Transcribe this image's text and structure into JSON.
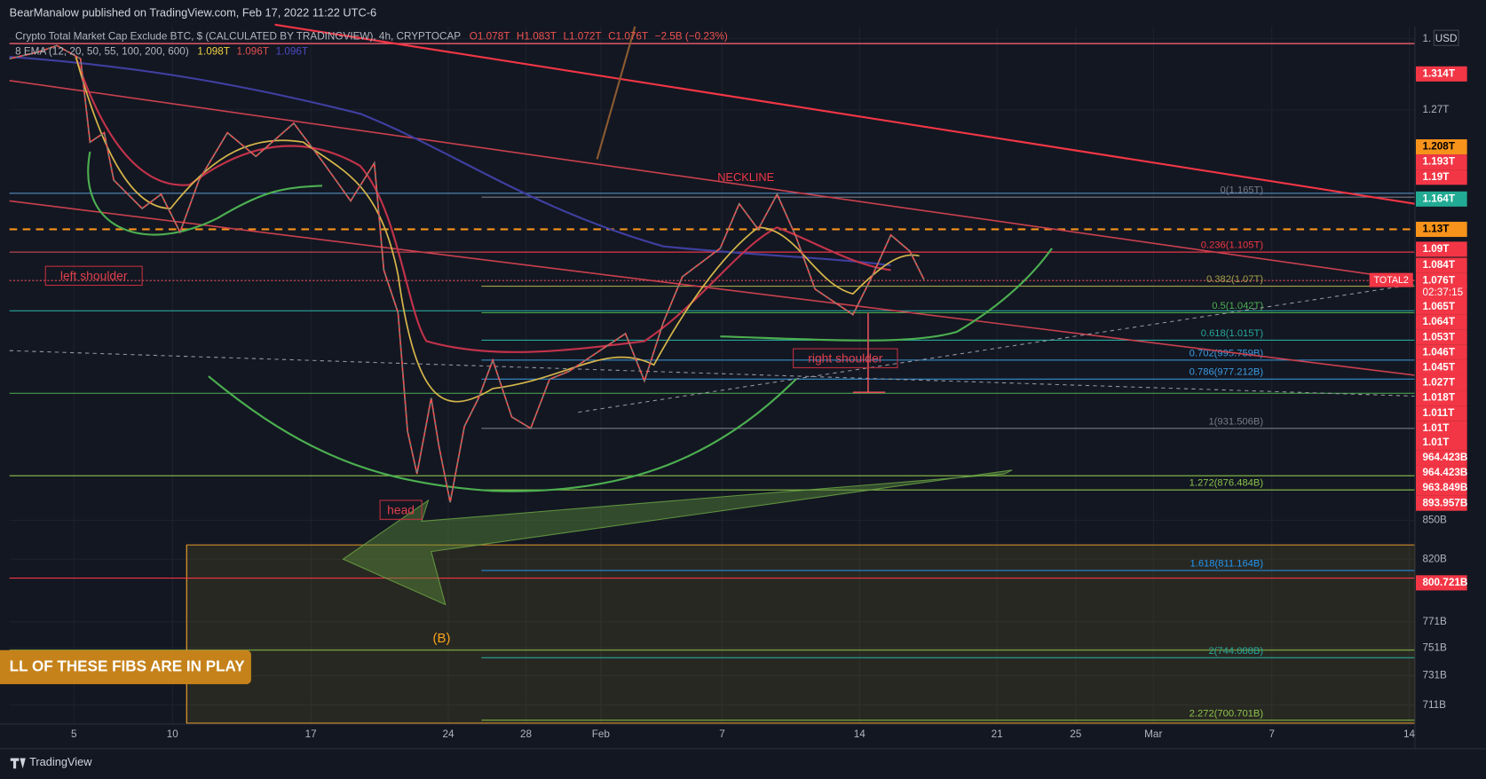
{
  "header": {
    "publisher": "BearManalow published on TradingView.com, Feb 17, 2022 11:22 UTC-6"
  },
  "legend": {
    "symbol": "Crypto Total Market Cap Exclude BTC, $ (CALCULATED BY TRADINGVIEW), 4h, CRYPTOCAP",
    "open": "O1.078T",
    "high": "H1.083T",
    "low": "L1.072T",
    "close": "C1.076T",
    "change": "−2.5B (−0.23%)",
    "indicator": "8 EMA (12, 20, 50, 55, 100, 200, 600)",
    "ema_values": [
      "1.098T",
      "1.096T",
      "1.096T"
    ]
  },
  "currency": "USD",
  "symbol_tag": "TOTAL2",
  "countdown": "02:37:15",
  "price_axis": [
    "1.",
    "1.314T",
    "1.27T",
    "1.208T",
    "1.193T",
    "1.19T",
    "1.164T",
    "1.13T",
    "1.09T",
    "1.084T",
    "1.076T",
    "1.065T",
    "1.064T",
    "1.053T",
    "1.046T",
    "1.045T",
    "1.027T",
    "1.018T",
    "1.011T",
    "1.01T",
    "1.01T",
    "964.423B",
    "964.423B",
    "963.849B",
    "893.957B",
    "850B",
    "820B",
    "800.721B",
    "771B",
    "751B",
    "731B",
    "711B"
  ],
  "time_axis": [
    "5",
    "10",
    "17",
    "24",
    "28",
    "Feb",
    "7",
    "14",
    "21",
    "25",
    "Mar",
    "7",
    "14"
  ],
  "fib_levels": [
    "0(1.165T)",
    "0.236(1.105T)",
    "0.382(1.07T)",
    "0.5(1.042T)",
    "0.618(1.015T)",
    "0.702(995.759B)",
    "0.786(977.212B)",
    "1(931.506B)",
    "1.272(876.484B)",
    "1.618(811.164B)",
    "2(744.088B)",
    "2.272(700.701B)"
  ],
  "annotations": {
    "neckline": "NECKLINE",
    "left_shoulder": "left shoulder",
    "right_shoulder": "right shoulder",
    "head": "head",
    "wave": "(B)",
    "banner": "LL OF THESE FIBS ARE IN PLAY"
  },
  "footer": {
    "brand": "TradingView"
  }
}
